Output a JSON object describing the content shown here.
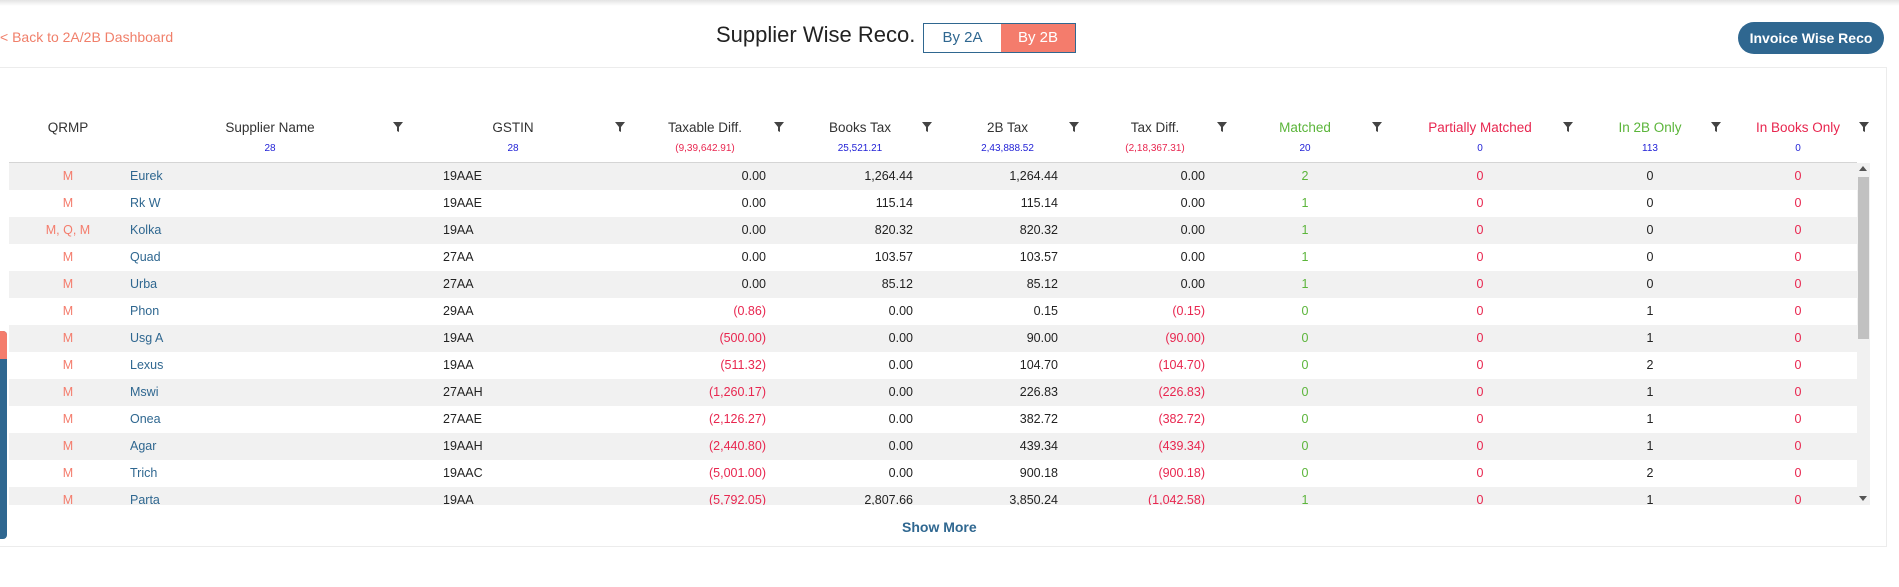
{
  "nav": {
    "back_label": "< Back to 2A/2B Dashboard"
  },
  "header": {
    "title": "Supplier Wise Reco.",
    "toggle": [
      "By 2A",
      "By 2B"
    ],
    "invoice_button": "Invoice Wise Reco"
  },
  "colors": {
    "accent": "#f47c6c",
    "primary": "#2f6790",
    "matched": "#5bb53a",
    "negative": "#e8264f",
    "partial": "#e8264f"
  },
  "columns": [
    {
      "label": "QRMP",
      "sub": "",
      "color": "#333333"
    },
    {
      "label": "Supplier Name",
      "sub": "28",
      "color": "#333333"
    },
    {
      "label": "GSTIN",
      "sub": "28",
      "color": "#333333"
    },
    {
      "label": "Taxable Diff.",
      "sub": "(9,39,642.91)",
      "color": "#333333"
    },
    {
      "label": "Books Tax",
      "sub": "25,521.21",
      "color": "#333333"
    },
    {
      "label": "2B Tax",
      "sub": "2,43,888.52",
      "color": "#333333"
    },
    {
      "label": "Tax Diff.",
      "sub": "(2,18,367.31)",
      "color": "#333333"
    },
    {
      "label": "Matched",
      "sub": "20",
      "color": "#5bb53a"
    },
    {
      "label": "Partially Matched",
      "sub": "0",
      "color": "#e8264f"
    },
    {
      "label": "In 2B Only",
      "sub": "113",
      "color": "#5bb53a"
    },
    {
      "label": "In Books Only",
      "sub": "0",
      "color": "#e8264f"
    }
  ],
  "rows": [
    {
      "qrmp": "M",
      "supplier": "Eurek",
      "gstin": "19AAE",
      "taxable_diff": "0.00",
      "books_tax": "1,264.44",
      "tax_2b": "1,264.44",
      "tax_diff": "0.00",
      "matched": "2",
      "partial": "0",
      "in_2b_only": "0",
      "in_books_only": "0"
    },
    {
      "qrmp": "M",
      "supplier": "Rk W",
      "gstin": "19AAE",
      "taxable_diff": "0.00",
      "books_tax": "115.14",
      "tax_2b": "115.14",
      "tax_diff": "0.00",
      "matched": "1",
      "partial": "0",
      "in_2b_only": "0",
      "in_books_only": "0"
    },
    {
      "qrmp": "M, Q, M",
      "supplier": "Kolka",
      "gstin": "19AA",
      "taxable_diff": "0.00",
      "books_tax": "820.32",
      "tax_2b": "820.32",
      "tax_diff": "0.00",
      "matched": "1",
      "partial": "0",
      "in_2b_only": "0",
      "in_books_only": "0"
    },
    {
      "qrmp": "M",
      "supplier": "Quad",
      "gstin": "27AA",
      "taxable_diff": "0.00",
      "books_tax": "103.57",
      "tax_2b": "103.57",
      "tax_diff": "0.00",
      "matched": "1",
      "partial": "0",
      "in_2b_only": "0",
      "in_books_only": "0"
    },
    {
      "qrmp": "M",
      "supplier": "Urba",
      "gstin": "27AA",
      "taxable_diff": "0.00",
      "books_tax": "85.12",
      "tax_2b": "85.12",
      "tax_diff": "0.00",
      "matched": "1",
      "partial": "0",
      "in_2b_only": "0",
      "in_books_only": "0"
    },
    {
      "qrmp": "M",
      "supplier": "Phon",
      "gstin": "29AA",
      "taxable_diff": "(0.86)",
      "books_tax": "0.00",
      "tax_2b": "0.15",
      "tax_diff": "(0.15)",
      "matched": "0",
      "partial": "0",
      "in_2b_only": "1",
      "in_books_only": "0"
    },
    {
      "qrmp": "M",
      "supplier": "Usg A",
      "gstin": "19AA",
      "taxable_diff": "(500.00)",
      "books_tax": "0.00",
      "tax_2b": "90.00",
      "tax_diff": "(90.00)",
      "matched": "0",
      "partial": "0",
      "in_2b_only": "1",
      "in_books_only": "0"
    },
    {
      "qrmp": "M",
      "supplier": "Lexus",
      "gstin": "19AA",
      "taxable_diff": "(511.32)",
      "books_tax": "0.00",
      "tax_2b": "104.70",
      "tax_diff": "(104.70)",
      "matched": "0",
      "partial": "0",
      "in_2b_only": "2",
      "in_books_only": "0"
    },
    {
      "qrmp": "M",
      "supplier": "Mswi",
      "gstin": "27AAH",
      "taxable_diff": "(1,260.17)",
      "books_tax": "0.00",
      "tax_2b": "226.83",
      "tax_diff": "(226.83)",
      "matched": "0",
      "partial": "0",
      "in_2b_only": "1",
      "in_books_only": "0"
    },
    {
      "qrmp": "M",
      "supplier": "Onea",
      "gstin": "27AAE",
      "taxable_diff": "(2,126.27)",
      "books_tax": "0.00",
      "tax_2b": "382.72",
      "tax_diff": "(382.72)",
      "matched": "0",
      "partial": "0",
      "in_2b_only": "1",
      "in_books_only": "0"
    },
    {
      "qrmp": "M",
      "supplier": "Agar",
      "gstin": "19AAH",
      "taxable_diff": "(2,440.80)",
      "books_tax": "0.00",
      "tax_2b": "439.34",
      "tax_diff": "(439.34)",
      "matched": "0",
      "partial": "0",
      "in_2b_only": "1",
      "in_books_only": "0"
    },
    {
      "qrmp": "M",
      "supplier": "Trich",
      "gstin": "19AAC",
      "taxable_diff": "(5,001.00)",
      "books_tax": "0.00",
      "tax_2b": "900.18",
      "tax_diff": "(900.18)",
      "matched": "0",
      "partial": "0",
      "in_2b_only": "2",
      "in_books_only": "0"
    },
    {
      "qrmp": "M",
      "supplier": "Parta",
      "gstin": "19AA",
      "taxable_diff": "(5,792.05)",
      "books_tax": "2,807.66",
      "tax_2b": "3,850.24",
      "tax_diff": "(1,042.58)",
      "matched": "1",
      "partial": "0",
      "in_2b_only": "1",
      "in_books_only": "0"
    }
  ],
  "footer": {
    "show_more": "Show More"
  }
}
